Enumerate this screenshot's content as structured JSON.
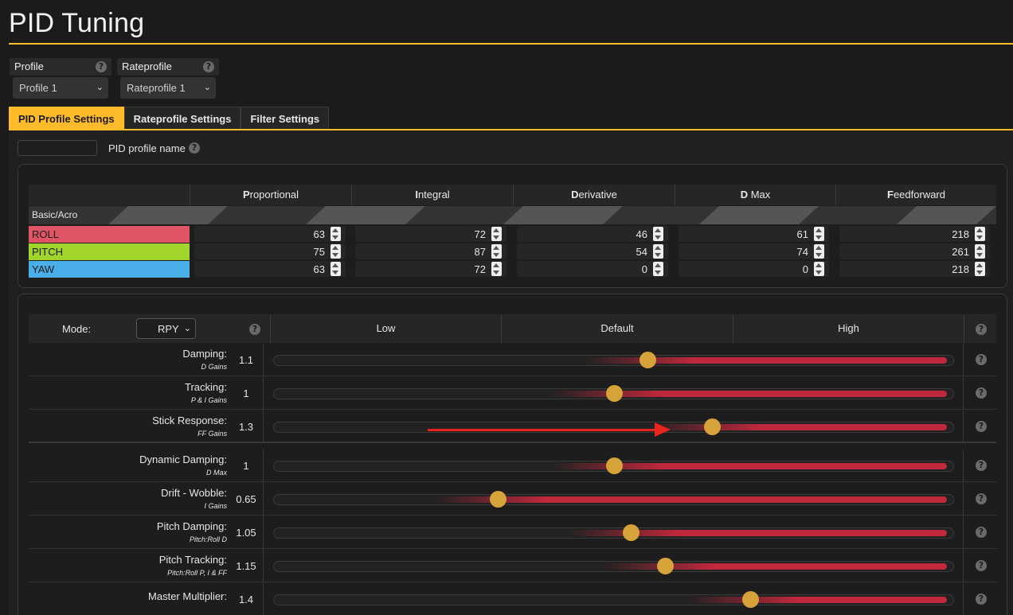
{
  "page": {
    "title": "PID Tuning"
  },
  "profile": {
    "label": "Profile",
    "selected": "Profile 1"
  },
  "rateprofile": {
    "label": "Rateprofile",
    "selected": "Rateprofile 1"
  },
  "tabs": [
    {
      "label": "PID Profile Settings",
      "active": true
    },
    {
      "label": "Rateprofile Settings",
      "active": false
    },
    {
      "label": "Filter Settings",
      "active": false
    }
  ],
  "profile_name": {
    "label": "PID profile name",
    "value": ""
  },
  "pid_table": {
    "columns": [
      {
        "initial": "P",
        "rest": "roportional"
      },
      {
        "initial": "I",
        "rest": "ntegral"
      },
      {
        "initial": "D",
        "rest": "erivative"
      },
      {
        "initial": "D",
        "rest": " Max"
      },
      {
        "initial": "F",
        "rest": "eedforward"
      }
    ],
    "section_label": "Basic/Acro",
    "rows": [
      {
        "axis": "ROLL",
        "color": "#e05565",
        "values": [
          "63",
          "72",
          "46",
          "61",
          "218"
        ]
      },
      {
        "axis": "PITCH",
        "color": "#a2d52c",
        "values": [
          "75",
          "87",
          "54",
          "74",
          "261"
        ]
      },
      {
        "axis": "YAW",
        "color": "#4aaee8",
        "values": [
          "63",
          "72",
          "0",
          "0",
          "218"
        ]
      }
    ]
  },
  "sliders": {
    "mode_label": "Mode:",
    "mode_value": "RPY",
    "headers": {
      "low": "Low",
      "default": "Default",
      "high": "High"
    },
    "rows": [
      {
        "label": "Damping:",
        "sub": "D Gains",
        "value": "1.1",
        "position": 0.55
      },
      {
        "label": "Tracking:",
        "sub": "P & I Gains",
        "value": "1",
        "position": 0.5
      },
      {
        "label": "Stick Response:",
        "sub": "FF Gains",
        "value": "1.3",
        "position": 0.645
      },
      {
        "label": "Dynamic Damping:",
        "sub": "D Max",
        "value": "1",
        "position": 0.5
      },
      {
        "label": "Drift - Wobble:",
        "sub": "I Gains",
        "value": "0.65",
        "position": 0.33
      },
      {
        "label": "Pitch Damping:",
        "sub": "Pitch:Roll D",
        "value": "1.05",
        "position": 0.525
      },
      {
        "label": "Pitch Tracking:",
        "sub": "Pitch:Roll P, I & FF",
        "value": "1.15",
        "position": 0.575
      },
      {
        "label": "Master Multiplier:",
        "sub": "",
        "value": "1.4",
        "position": 0.7
      }
    ]
  },
  "colors": {
    "accent": "#ffbb2a",
    "thumb": "#d6a23a",
    "track_fill": "#c0283c",
    "annotation_arrow": "#e8241e"
  },
  "icons": {
    "help": "question-circle-icon",
    "dropdown": "chevron-down-icon",
    "spinner": "spinner-arrows-icon"
  }
}
